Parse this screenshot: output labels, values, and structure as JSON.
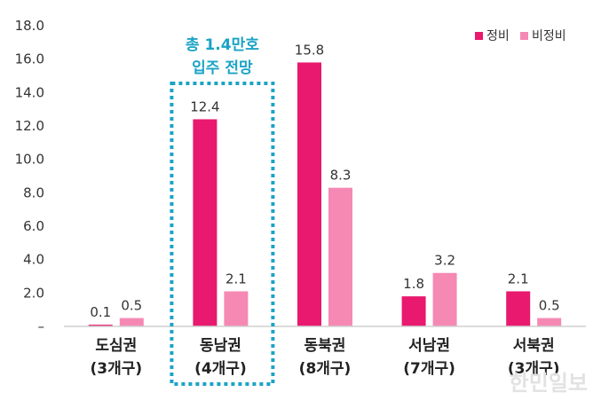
{
  "chart_data": {
    "type": "bar",
    "categories": [
      "도심권",
      "동남권",
      "동북권",
      "서남권",
      "서북권"
    ],
    "category_sublabels": [
      "(3개구)",
      "(4개구)",
      "(8개구)",
      "(7개구)",
      "(3개구)"
    ],
    "series": [
      {
        "name": "정비",
        "values": [
          0.1,
          12.4,
          15.8,
          1.8,
          2.1
        ],
        "color": "#e8196e"
      },
      {
        "name": "비정비",
        "values": [
          0.5,
          2.1,
          8.3,
          3.2,
          0.5
        ],
        "color": "#f589b4"
      }
    ],
    "y_ticks": [
      "–",
      "2.0",
      "4.0",
      "6.0",
      "8.0",
      "10.0",
      "12.0",
      "14.0",
      "16.0",
      "18.0"
    ],
    "ylim": [
      0,
      18
    ],
    "legend_position": "top-right",
    "grid": false,
    "annotation": {
      "lines": [
        "총 1.4만호",
        "입주 전망"
      ],
      "category": "동남권",
      "color": "#1ba3c6"
    },
    "watermark": "한민일보"
  }
}
